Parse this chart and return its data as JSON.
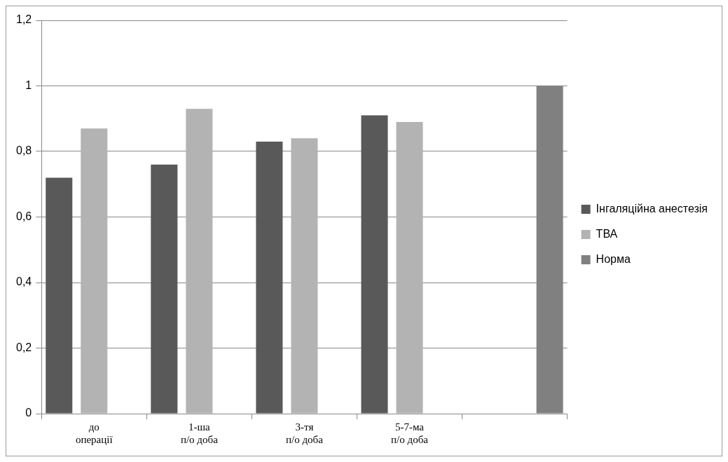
{
  "chart_data": {
    "type": "bar",
    "categories": [
      "до операції",
      "1-ша п/о доба",
      "3-тя п/о доба",
      "5-7-ма п/о доба",
      null
    ],
    "series": [
      {
        "name": "Інгаляційна анестезія",
        "color": "#595959",
        "values": [
          0.72,
          0.76,
          0.83,
          0.91,
          null
        ]
      },
      {
        "name": "ТВА",
        "color": "#b3b3b3",
        "values": [
          0.87,
          0.93,
          0.84,
          0.89,
          null
        ]
      },
      {
        "name": "Норма",
        "color": "#808080",
        "values": [
          null,
          null,
          null,
          null,
          1.0
        ]
      }
    ],
    "ylim": [
      0,
      1.2
    ],
    "yticks": [
      0,
      {
        "value": 0.2,
        "label": "0,2"
      },
      {
        "value": 0.4,
        "label": "0,4"
      },
      {
        "value": 0.6,
        "label": "0,6"
      },
      {
        "value": 0.8,
        "label": "0,8"
      },
      1,
      {
        "value": 1.2,
        "label": "1,2"
      }
    ],
    "grid": "y",
    "legend": "right"
  }
}
